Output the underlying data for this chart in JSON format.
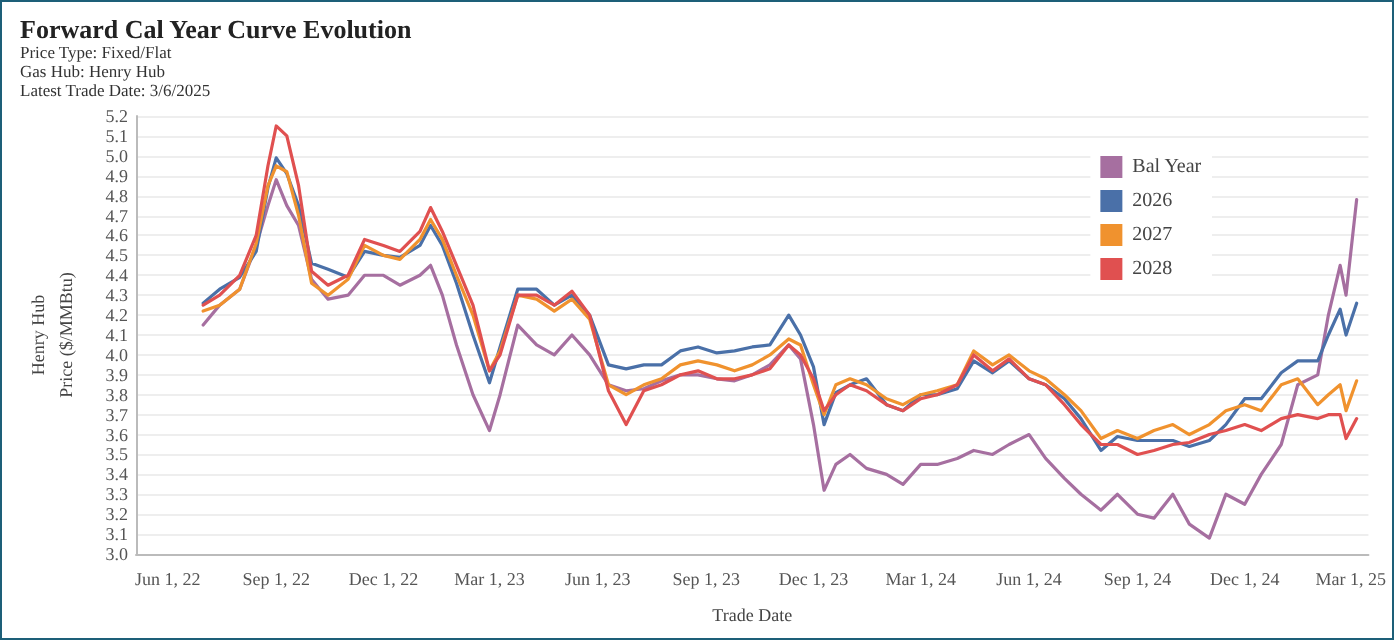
{
  "chart_data": {
    "type": "line",
    "title": "Forward Cal Year Curve Evolution",
    "subtitle": "Price Type: Fixed/Flat\nGas Hub: Henry Hub\nLatest Trade Date: 3/6/2025",
    "xlabel": "Trade Date",
    "ylabel": "Henry Hub\nPrice ($/MMBtu)",
    "x": [
      "2022-07-01",
      "2022-07-15",
      "2022-08-01",
      "2022-08-15",
      "2022-08-25",
      "2022-09-01",
      "2022-09-10",
      "2022-09-20",
      "2022-10-01",
      "2022-10-15",
      "2022-11-01",
      "2022-11-15",
      "2022-12-01",
      "2022-12-15",
      "2023-01-01",
      "2023-01-10",
      "2023-01-20",
      "2023-02-01",
      "2023-02-15",
      "2023-03-01",
      "2023-03-10",
      "2023-03-25",
      "2023-04-10",
      "2023-04-25",
      "2023-05-10",
      "2023-05-25",
      "2023-06-10",
      "2023-06-25",
      "2023-07-10",
      "2023-07-25",
      "2023-08-10",
      "2023-08-25",
      "2023-09-10",
      "2023-09-25",
      "2023-10-10",
      "2023-10-25",
      "2023-11-10",
      "2023-11-20",
      "2023-12-01",
      "2023-12-10",
      "2023-12-20",
      "2024-01-01",
      "2024-01-15",
      "2024-02-01",
      "2024-02-15",
      "2024-03-01",
      "2024-03-15",
      "2024-04-01",
      "2024-04-15",
      "2024-05-01",
      "2024-05-15",
      "2024-06-01",
      "2024-06-15",
      "2024-07-01",
      "2024-07-15",
      "2024-08-01",
      "2024-08-15",
      "2024-09-01",
      "2024-09-15",
      "2024-10-01",
      "2024-10-15",
      "2024-11-01",
      "2024-11-15",
      "2024-12-01",
      "2024-12-15",
      "2025-01-01",
      "2025-01-15",
      "2025-02-01",
      "2025-02-10",
      "2025-02-20",
      "2025-02-25",
      "2025-03-06"
    ],
    "series": [
      {
        "name": "Bal Year",
        "color": "#a66fa0",
        "values": [
          4.15,
          4.25,
          4.33,
          4.55,
          4.75,
          4.88,
          4.75,
          4.65,
          4.38,
          4.28,
          4.3,
          4.4,
          4.4,
          4.35,
          4.4,
          4.45,
          4.3,
          4.05,
          3.8,
          3.62,
          3.8,
          4.15,
          4.05,
          4.0,
          4.1,
          4.0,
          3.85,
          3.82,
          3.83,
          3.87,
          3.9,
          3.9,
          3.88,
          3.87,
          3.9,
          3.95,
          4.05,
          3.98,
          3.65,
          3.32,
          3.45,
          3.5,
          3.43,
          3.4,
          3.35,
          3.45,
          3.45,
          3.48,
          3.52,
          3.5,
          3.55,
          3.6,
          3.48,
          3.38,
          3.3,
          3.22,
          3.3,
          3.2,
          3.18,
          3.3,
          3.15,
          3.08,
          3.3,
          3.25,
          3.4,
          3.55,
          3.85,
          3.9,
          4.2,
          4.45,
          4.3,
          4.78
        ]
      },
      {
        "name": "2026",
        "color": "#4a70a8",
        "values": [
          4.26,
          4.33,
          4.39,
          4.52,
          4.84,
          4.99,
          4.91,
          4.75,
          4.46,
          4.43,
          4.39,
          4.52,
          4.5,
          4.49,
          4.55,
          4.65,
          4.55,
          4.36,
          4.1,
          3.86,
          4.04,
          4.33,
          4.33,
          4.25,
          4.3,
          4.2,
          3.95,
          3.93,
          3.95,
          3.95,
          4.02,
          4.04,
          4.01,
          4.02,
          4.04,
          4.05,
          4.2,
          4.1,
          3.94,
          3.65,
          3.81,
          3.85,
          3.88,
          3.75,
          3.72,
          3.8,
          3.8,
          3.83,
          3.97,
          3.91,
          3.97,
          3.88,
          3.85,
          3.78,
          3.68,
          3.52,
          3.59,
          3.57,
          3.57,
          3.57,
          3.54,
          3.57,
          3.65,
          3.78,
          3.78,
          3.91,
          3.97,
          3.97,
          4.1,
          4.23,
          4.1,
          4.26
        ]
      },
      {
        "name": "2027",
        "color": "#f0922e",
        "values": [
          4.22,
          4.25,
          4.33,
          4.56,
          4.85,
          4.95,
          4.92,
          4.7,
          4.36,
          4.3,
          4.38,
          4.55,
          4.5,
          4.48,
          4.58,
          4.68,
          4.58,
          4.4,
          4.2,
          3.92,
          4.02,
          4.3,
          4.28,
          4.22,
          4.28,
          4.18,
          3.85,
          3.8,
          3.85,
          3.88,
          3.95,
          3.97,
          3.95,
          3.92,
          3.95,
          4.0,
          4.08,
          4.05,
          3.85,
          3.7,
          3.85,
          3.88,
          3.85,
          3.78,
          3.75,
          3.8,
          3.82,
          3.85,
          4.02,
          3.95,
          4.0,
          3.92,
          3.88,
          3.8,
          3.72,
          3.58,
          3.62,
          3.58,
          3.62,
          3.65,
          3.6,
          3.65,
          3.72,
          3.75,
          3.72,
          3.85,
          3.88,
          3.75,
          3.8,
          3.85,
          3.72,
          3.87
        ]
      },
      {
        "name": "2028",
        "color": "#e05050",
        "values": [
          4.25,
          4.3,
          4.4,
          4.6,
          4.95,
          5.15,
          5.1,
          4.85,
          4.42,
          4.35,
          4.4,
          4.58,
          4.55,
          4.52,
          4.62,
          4.74,
          4.62,
          4.45,
          4.25,
          3.92,
          4.0,
          4.3,
          4.3,
          4.25,
          4.32,
          4.2,
          3.82,
          3.65,
          3.82,
          3.85,
          3.9,
          3.92,
          3.88,
          3.88,
          3.9,
          3.93,
          4.05,
          4.0,
          3.88,
          3.72,
          3.8,
          3.85,
          3.82,
          3.75,
          3.72,
          3.78,
          3.8,
          3.85,
          4.0,
          3.92,
          3.98,
          3.88,
          3.85,
          3.75,
          3.65,
          3.55,
          3.55,
          3.5,
          3.52,
          3.55,
          3.56,
          3.6,
          3.62,
          3.65,
          3.62,
          3.68,
          3.7,
          3.68,
          3.7,
          3.7,
          3.58,
          3.68
        ]
      }
    ],
    "xlim": [
      "2022-05-05",
      "2025-03-16"
    ],
    "xticks": [
      {
        "value": "2022-06-01",
        "label": "Jun 1, 22"
      },
      {
        "value": "2022-09-01",
        "label": "Sep 1, 22"
      },
      {
        "value": "2022-12-01",
        "label": "Dec 1, 22"
      },
      {
        "value": "2023-03-01",
        "label": "Mar 1, 23"
      },
      {
        "value": "2023-06-01",
        "label": "Jun 1, 23"
      },
      {
        "value": "2023-09-01",
        "label": "Sep 1, 23"
      },
      {
        "value": "2023-12-01",
        "label": "Dec 1, 23"
      },
      {
        "value": "2024-03-01",
        "label": "Mar 1, 24"
      },
      {
        "value": "2024-06-01",
        "label": "Jun 1, 24"
      },
      {
        "value": "2024-09-01",
        "label": "Sep 1, 24"
      },
      {
        "value": "2024-12-01",
        "label": "Dec 1, 24"
      },
      {
        "value": "2025-03-01",
        "label": "Mar 1, 25"
      }
    ],
    "ylim": [
      3.0,
      5.2
    ],
    "yticks": [
      {
        "value": 3.0,
        "label": "3.0"
      },
      3.1,
      3.2,
      3.3,
      3.4,
      3.5,
      3.6,
      3.7,
      3.8,
      3.9,
      {
        "value": 4.0,
        "label": "4.0"
      },
      4.1,
      4.2,
      4.3,
      4.4,
      4.5,
      4.6,
      4.7,
      4.8,
      4.9,
      {
        "value": 5.0,
        "label": "5.0"
      },
      5.1,
      5.2
    ],
    "grid": "y",
    "legend": "top right",
    "marker": "none",
    "line_style": "solid"
  }
}
